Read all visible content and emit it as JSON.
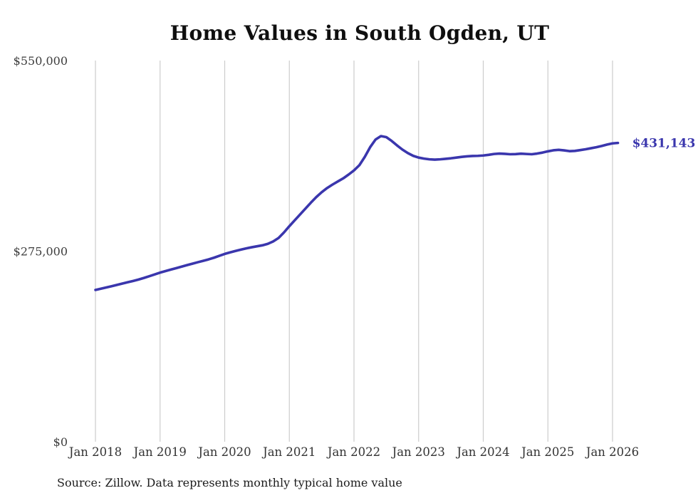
{
  "chart_data": {
    "type": "line",
    "title": "Home Values in South Ogden, UT",
    "source_note": "Source: Zillow. Data represents monthly typical home value",
    "end_label": "$431,143",
    "line_color": "#3a36ad",
    "grid_color": "#cccccc",
    "tick_text_color": "#3d3d3d",
    "title_color": "#0f0f0f",
    "ylim": [
      0,
      550000
    ],
    "y_ticks": [
      {
        "value": 550000,
        "label": "$550,000"
      },
      {
        "value": 275000,
        "label": "$275,000"
      },
      {
        "value": 0,
        "label": "$0"
      }
    ],
    "x_tick_labels": [
      "Jan 2018",
      "Jan 2019",
      "Jan 2020",
      "Jan 2021",
      "Jan 2022",
      "Jan 2023",
      "Jan 2024",
      "Jan 2025",
      "Jan 2026"
    ],
    "x_start": "Jan 2018",
    "x_end": "Feb 2026",
    "months_per_tick": 12,
    "legend": "none",
    "grid": "vertical-only",
    "values": [
      219000,
      220800,
      222600,
      224400,
      226300,
      228200,
      230100,
      232000,
      234000,
      236300,
      238800,
      241400,
      244000,
      246200,
      248400,
      250500,
      252600,
      254800,
      256900,
      259000,
      261000,
      263100,
      265500,
      268200,
      271000,
      273200,
      275300,
      277200,
      279000,
      280600,
      282000,
      283400,
      285500,
      289000,
      294000,
      302000,
      311000,
      319500,
      328000,
      336500,
      345000,
      353000,
      360000,
      366000,
      371000,
      375500,
      380000,
      385500,
      391500,
      399000,
      411000,
      425000,
      436000,
      441000,
      439500,
      434000,
      427500,
      421500,
      416500,
      412500,
      410000,
      408500,
      407500,
      407000,
      407500,
      408200,
      409000,
      410000,
      411000,
      411800,
      412300,
      412500,
      413000,
      414000,
      415200,
      415800,
      415400,
      414800,
      415000,
      415600,
      415200,
      414800,
      415800,
      417200,
      419000,
      420500,
      421200,
      420400,
      419300,
      419600,
      420800,
      422000,
      423500,
      425000,
      426800,
      428800,
      430500,
      431143
    ]
  }
}
